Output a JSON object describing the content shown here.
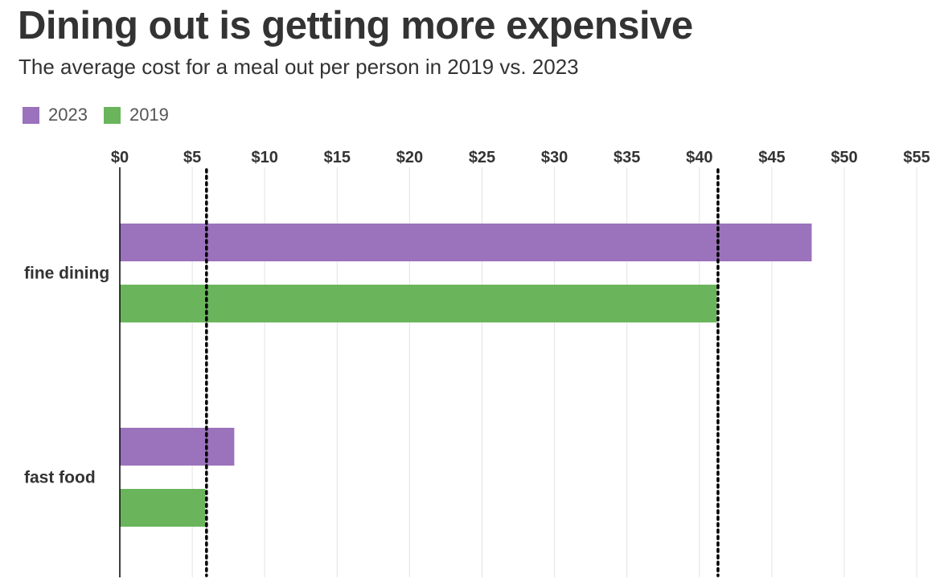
{
  "header": {
    "title": "Dining out is getting more expensive",
    "subtitle": "The average cost for a meal out per person in 2019 vs. 2023"
  },
  "legend": [
    {
      "label": "2023",
      "color": "#9b72bc"
    },
    {
      "label": "2019",
      "color": "#6ab55c"
    }
  ],
  "chart_data": {
    "type": "bar",
    "orientation": "horizontal",
    "title": "Dining out is getting more expensive",
    "subtitle": "The average cost for a meal out per person in 2019 vs. 2023",
    "categories": [
      "fine dining",
      "fast food"
    ],
    "series": [
      {
        "name": "2023",
        "color": "#9b72bc",
        "values": [
          47.75,
          7.9
        ]
      },
      {
        "name": "2019",
        "color": "#6ab55c",
        "values": [
          41.2,
          5.9
        ]
      }
    ],
    "xlim": [
      0,
      55
    ],
    "xticks": [
      0,
      5,
      10,
      15,
      20,
      25,
      30,
      35,
      40,
      45,
      50,
      55
    ],
    "xtick_labels": [
      "$0",
      "$5",
      "$10",
      "$15",
      "$20",
      "$25",
      "$30",
      "$35",
      "$40",
      "$45",
      "$50",
      "$55"
    ],
    "xaxis_position": "top",
    "grid": true,
    "reference_lines": [
      5.9,
      41.2
    ],
    "legend_position": "top-left"
  }
}
